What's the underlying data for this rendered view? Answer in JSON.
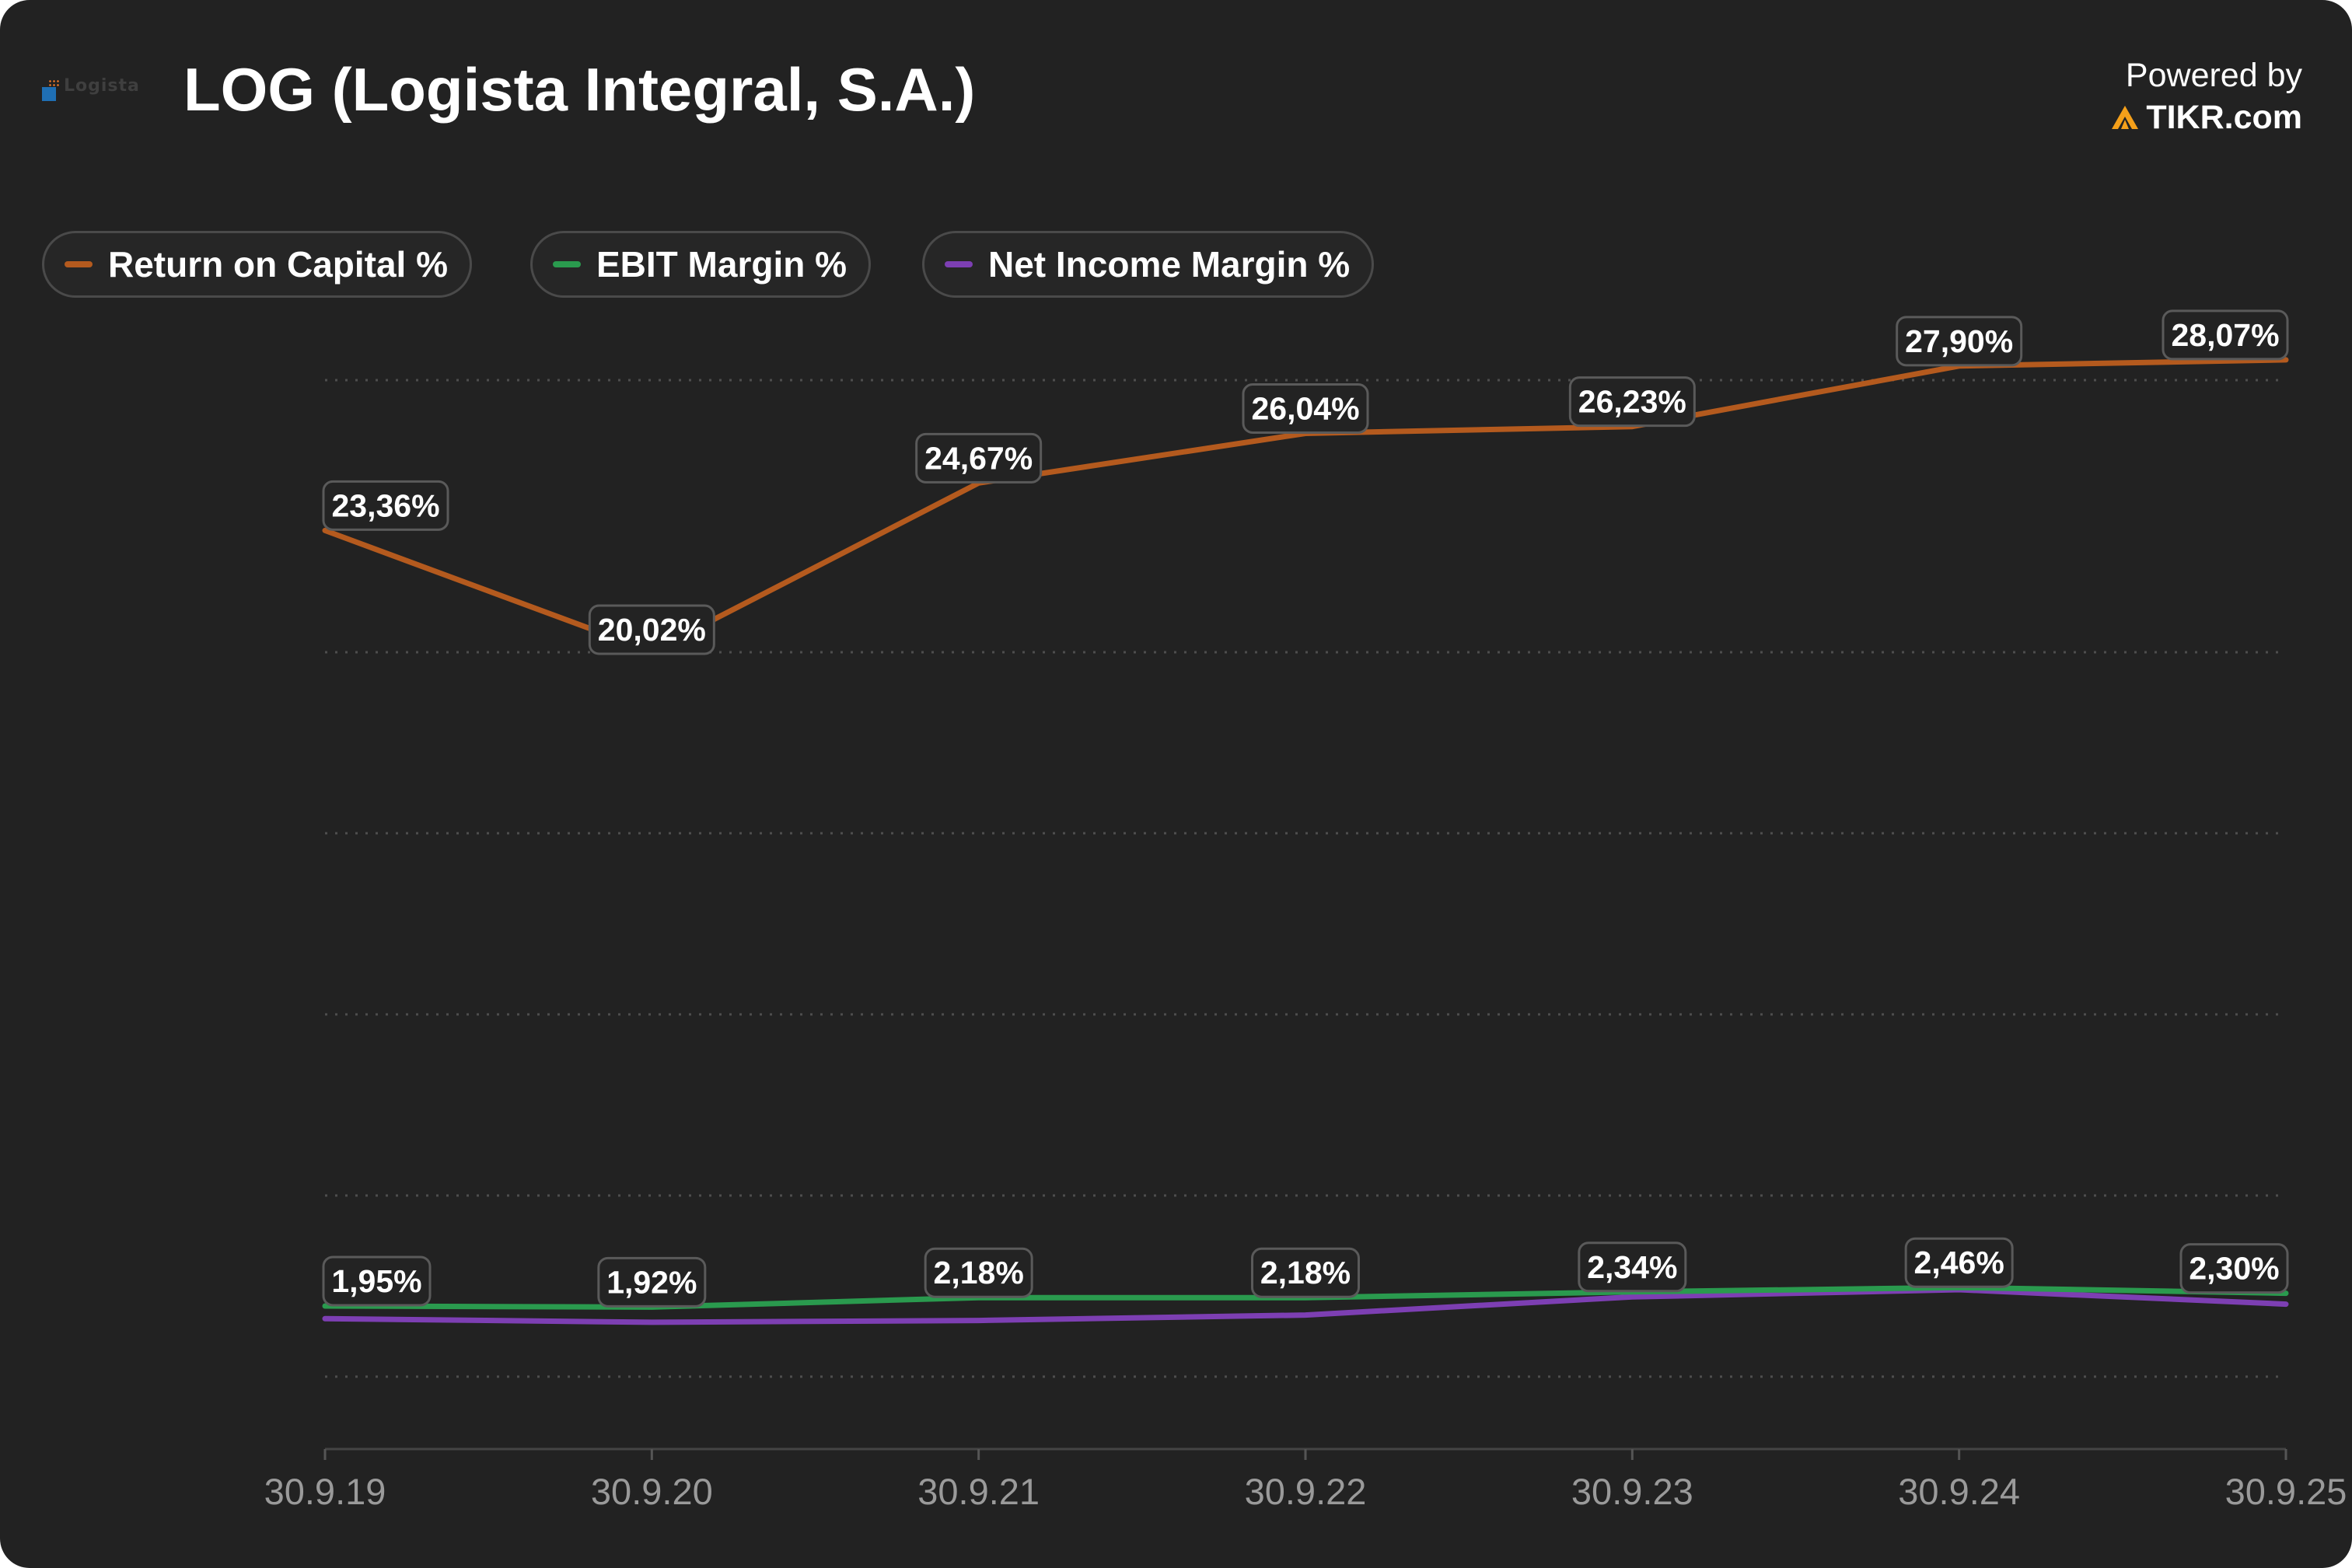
{
  "header": {
    "logo_text": "Logista",
    "title": "LOG (Logista Integral, S.A.)",
    "powered_by": "Powered by",
    "brand": "TIKR.com"
  },
  "colors": {
    "background": "#222222",
    "return_on_capital": "#b45a1e",
    "ebit_margin": "#2a9a4e",
    "net_income_margin": "#7d3fb3",
    "brand_accent": "#f5a01a"
  },
  "chart_data": {
    "type": "line",
    "categories": [
      "30.9.19",
      "30.9.20",
      "30.9.21",
      "30.9.22",
      "30.9.23",
      "30.9.24",
      "30.9.25"
    ],
    "series": [
      {
        "name": "Return on Capital %",
        "values": [
          23.36,
          20.02,
          24.67,
          26.04,
          26.23,
          27.9,
          28.07
        ],
        "labels": [
          "23,36%",
          "20,02%",
          "24,67%",
          "26,04%",
          "26,23%",
          "27,90%",
          "28,07%"
        ]
      },
      {
        "name": "EBIT Margin %",
        "values": [
          1.95,
          1.92,
          2.18,
          2.18,
          2.34,
          2.46,
          2.3
        ],
        "labels": [
          "1,95%",
          "1,92%",
          "2,18%",
          "2,18%",
          "2,34%",
          "2,46%",
          "2,30%"
        ]
      },
      {
        "name": "Net Income Margin %",
        "values": [
          1.6,
          1.5,
          1.55,
          1.7,
          2.2,
          2.4,
          2.0
        ]
      }
    ],
    "ylim": [
      -2,
      30
    ],
    "grid": true,
    "legend": "top-left"
  }
}
